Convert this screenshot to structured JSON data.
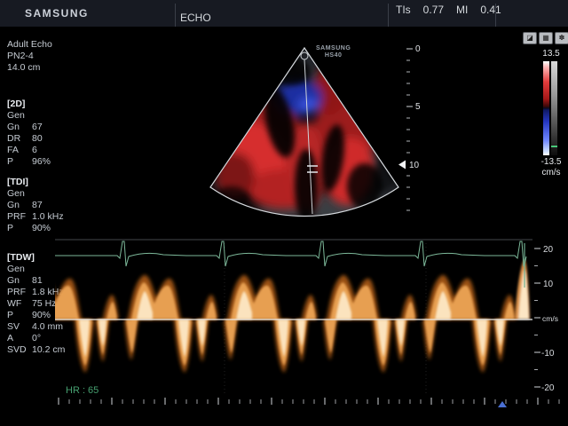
{
  "header": {
    "brand": "SAMSUNG",
    "title": "ECHO",
    "ti_label": "TIs",
    "ti_value": "0.77",
    "mi_label": "MI",
    "mi_value": "0.41"
  },
  "status_icons": {
    "icon1": "◪",
    "icon2": "▦",
    "icon3": "✽"
  },
  "sidebar": {
    "preset": {
      "line1": "Adult Echo",
      "line2": "PN2-4",
      "line3": "14.0 cm"
    },
    "sections": [
      {
        "title": "[2D]",
        "mode": "Gen",
        "rows": [
          {
            "label": "Gn",
            "value": "67"
          },
          {
            "label": "DR",
            "value": "80"
          },
          {
            "label": "FA",
            "value": "6"
          },
          {
            "label": "P",
            "value": "96%"
          }
        ]
      },
      {
        "title": "[TDI]",
        "mode": "Gen",
        "rows": [
          {
            "label": "Gn",
            "value": "87"
          },
          {
            "label": "PRF",
            "value": "1.0 kHz"
          },
          {
            "label": "P",
            "value": "90%"
          }
        ]
      },
      {
        "title": "[TDW]",
        "mode": "Gen",
        "rows": [
          {
            "label": "Gn",
            "value": "81"
          },
          {
            "label": "PRF",
            "value": "1.8 kHz"
          },
          {
            "label": "WF",
            "value": "75 Hz"
          },
          {
            "label": "P",
            "value": "90%"
          },
          {
            "label": "SV",
            "value": "4.0 mm"
          },
          {
            "label": "A",
            "value": "0°"
          },
          {
            "label": "SVD",
            "value": "10.2 cm"
          }
        ]
      }
    ]
  },
  "image": {
    "watermark_line1": "SAMSUNG",
    "watermark_line2": "HS40"
  },
  "color_bar": {
    "max": "13.5",
    "min": "-13.5",
    "unit": "cm/s"
  },
  "depth_ruler": {
    "label_0": "0",
    "label_5": "5",
    "label_10": "10"
  },
  "velocity_scale": {
    "p20": "20",
    "p10": "10",
    "zero_unit": "cm/s",
    "m10": "-10",
    "m20": "-20"
  },
  "ecg": {
    "hr": "HR : 65"
  }
}
